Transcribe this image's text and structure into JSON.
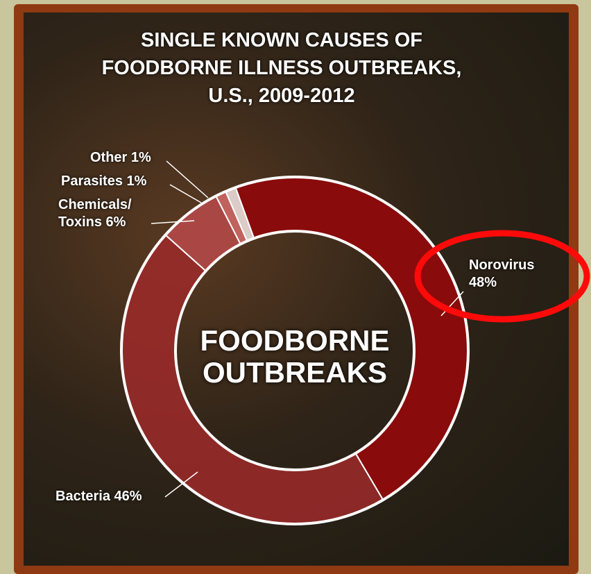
{
  "chart_data": {
    "type": "donut",
    "title": "SINGLE KNOWN CAUSES OF FOODBORNE ILLNESS OUTBREAKS, U.S., 2009-2012",
    "center_label": "FOODBORNE OUTBREAKS",
    "categories": [
      "Norovirus",
      "Bacteria",
      "Chemicals/ Toxins",
      "Parasites",
      "Other"
    ],
    "values": [
      48,
      46,
      6,
      1,
      1
    ],
    "value_labels": [
      "48%",
      "46%",
      "6%",
      "1%",
      "1%"
    ],
    "colors": [
      "#8a0b0b",
      "#9e2a2a",
      "#b84a4a",
      "#d46a6a",
      "#f3e6e6"
    ]
  }
}
